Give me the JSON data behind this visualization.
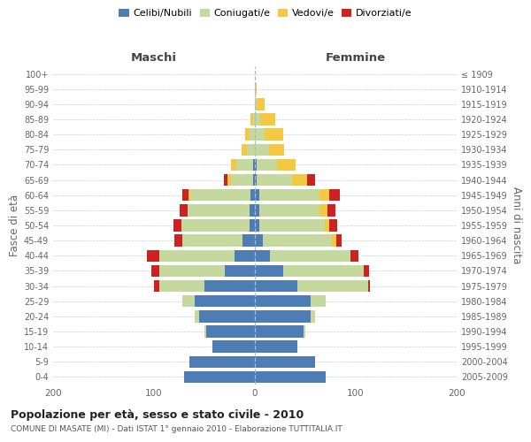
{
  "age_groups": [
    "0-4",
    "5-9",
    "10-14",
    "15-19",
    "20-24",
    "25-29",
    "30-34",
    "35-39",
    "40-44",
    "45-49",
    "50-54",
    "55-59",
    "60-64",
    "65-69",
    "70-74",
    "75-79",
    "80-84",
    "85-89",
    "90-94",
    "95-99",
    "100+"
  ],
  "birth_years": [
    "2005-2009",
    "2000-2004",
    "1995-1999",
    "1990-1994",
    "1985-1989",
    "1980-1984",
    "1975-1979",
    "1970-1974",
    "1965-1969",
    "1960-1964",
    "1955-1959",
    "1950-1954",
    "1945-1949",
    "1940-1944",
    "1935-1939",
    "1930-1934",
    "1925-1929",
    "1920-1924",
    "1915-1919",
    "1910-1914",
    "≤ 1909"
  ],
  "males": {
    "celibi": [
      70,
      65,
      42,
      48,
      55,
      60,
      50,
      30,
      20,
      12,
      5,
      5,
      4,
      2,
      2,
      0,
      0,
      0,
      0,
      0,
      0
    ],
    "coniugati": [
      0,
      0,
      0,
      2,
      5,
      12,
      45,
      65,
      75,
      60,
      68,
      62,
      60,
      22,
      16,
      8,
      5,
      2,
      0,
      0,
      0
    ],
    "vedovi": [
      0,
      0,
      0,
      0,
      0,
      0,
      0,
      0,
      0,
      0,
      0,
      0,
      2,
      3,
      6,
      5,
      5,
      2,
      0,
      0,
      0
    ],
    "divorziati": [
      0,
      0,
      0,
      0,
      0,
      0,
      5,
      8,
      12,
      8,
      8,
      8,
      6,
      4,
      0,
      0,
      0,
      0,
      0,
      0,
      0
    ]
  },
  "females": {
    "nubili": [
      70,
      60,
      42,
      48,
      55,
      55,
      42,
      28,
      15,
      8,
      4,
      4,
      4,
      2,
      2,
      0,
      0,
      0,
      0,
      0,
      0
    ],
    "coniugate": [
      0,
      0,
      0,
      2,
      5,
      15,
      70,
      80,
      80,
      68,
      65,
      60,
      60,
      35,
      20,
      14,
      10,
      5,
      2,
      0,
      0
    ],
    "vedove": [
      0,
      0,
      0,
      0,
      0,
      0,
      0,
      0,
      0,
      5,
      5,
      8,
      10,
      15,
      18,
      15,
      18,
      15,
      8,
      2,
      0
    ],
    "divorziate": [
      0,
      0,
      0,
      0,
      0,
      0,
      2,
      5,
      8,
      5,
      8,
      8,
      10,
      8,
      0,
      0,
      0,
      0,
      0,
      0,
      0
    ]
  },
  "colors": {
    "celibi_nubili": "#4e7db5",
    "coniugati": "#c5d89e",
    "vedovi": "#f5c842",
    "divorziati": "#cc2222"
  },
  "xlim": 200,
  "title": "Popolazione per età, sesso e stato civile - 2010",
  "subtitle": "COMUNE DI MASATE (MI) - Dati ISTAT 1° gennaio 2010 - Elaborazione TUTTITALIA.IT",
  "xlabel_left": "Maschi",
  "xlabel_right": "Femmine",
  "ylabel_left": "Fasce di età",
  "ylabel_right": "Anni di nascita",
  "legend_labels": [
    "Celibi/Nubili",
    "Coniugati/e",
    "Vedovi/e",
    "Divorziati/e"
  ],
  "background_color": "#ffffff",
  "grid_color": "#cccccc"
}
